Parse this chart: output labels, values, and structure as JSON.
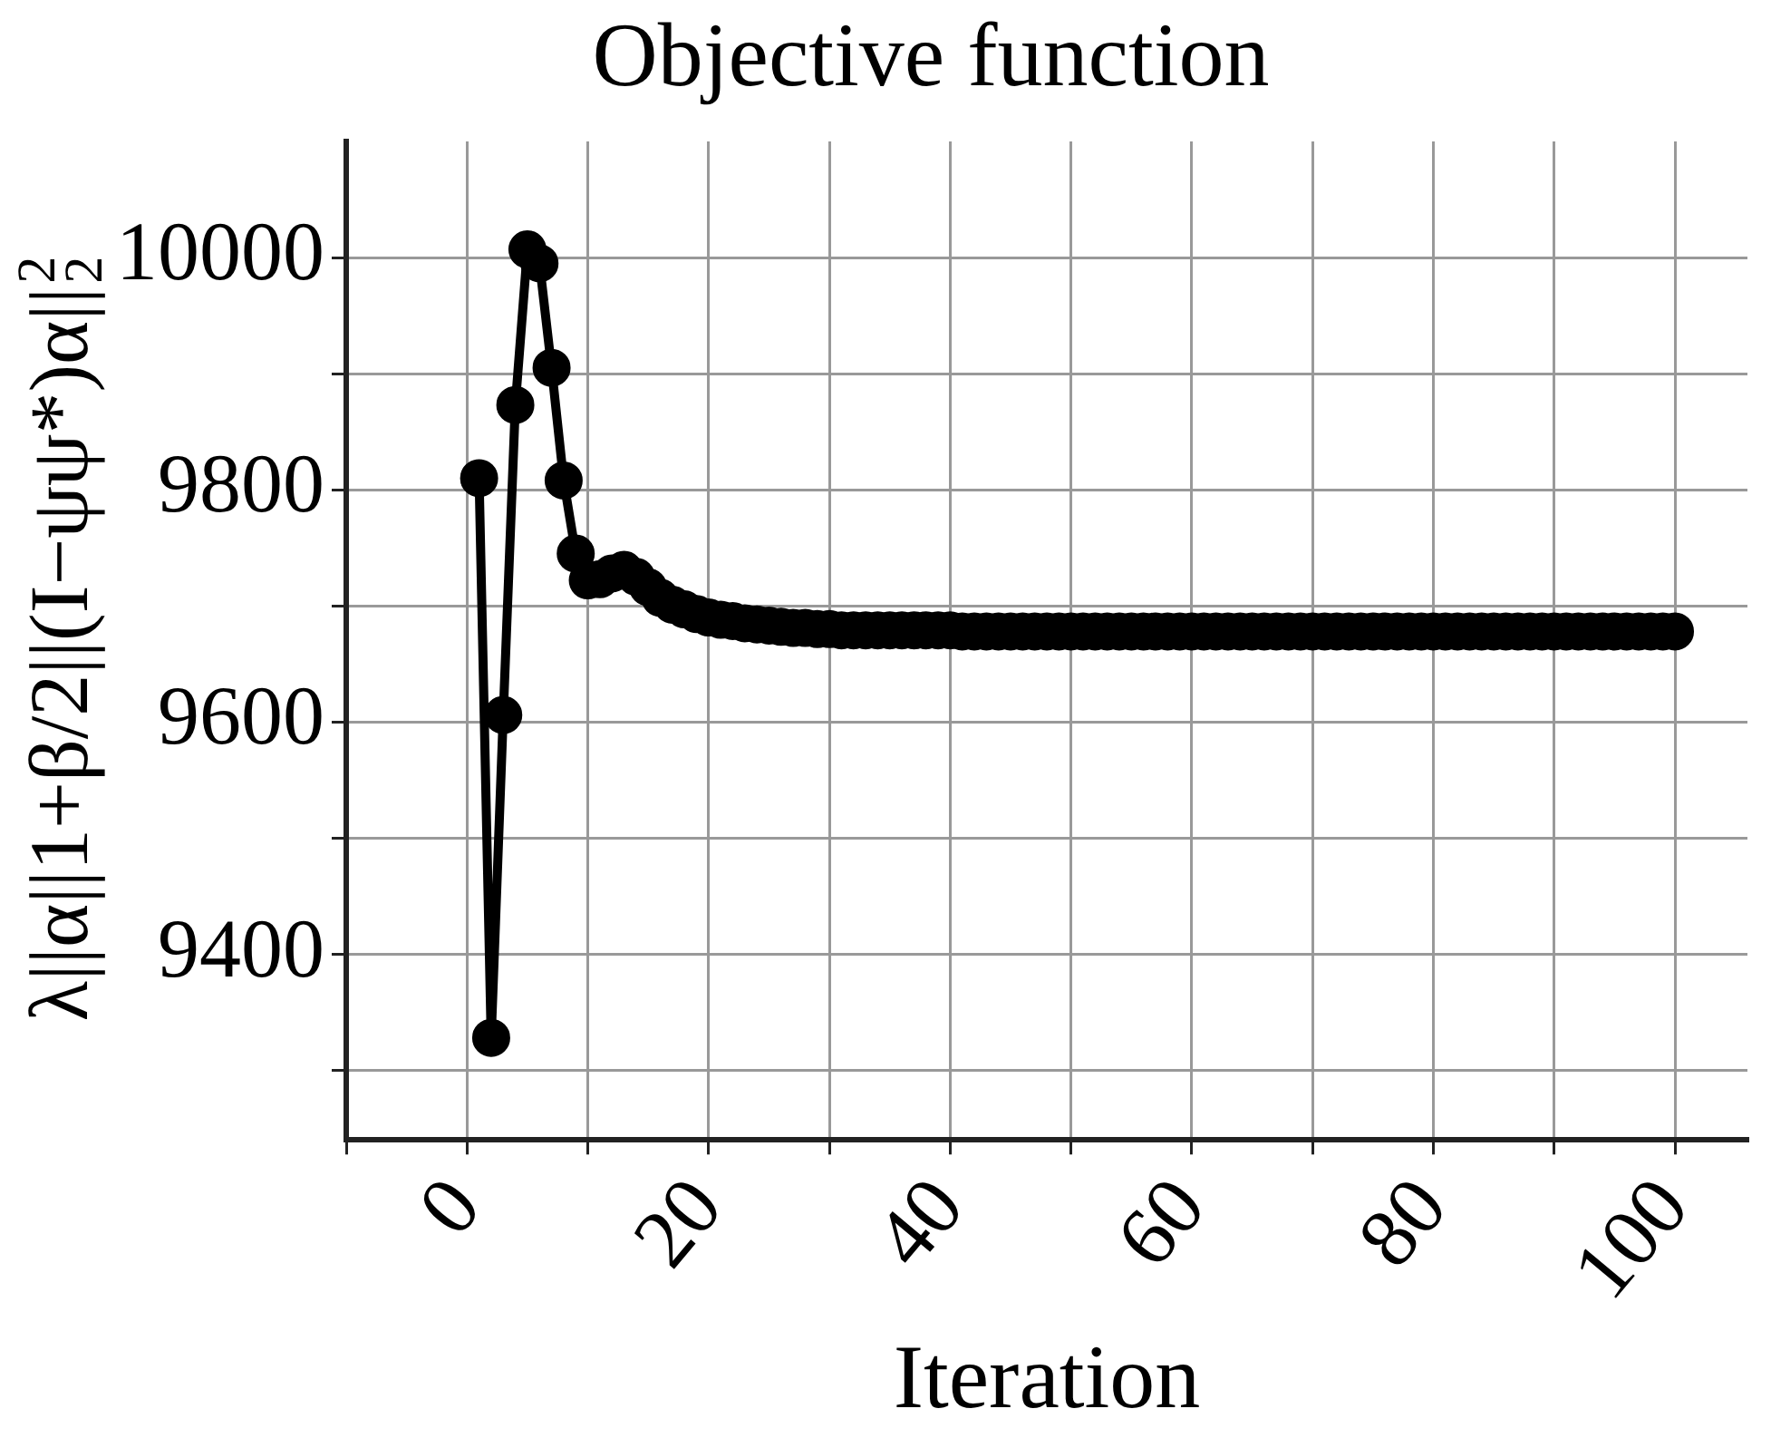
{
  "chart_data": {
    "type": "line",
    "title": "Objective function",
    "xlabel": "Iteration",
    "ylabel": "λ||α||1+β/2||(I−ψψ*)α||$_{2}$$^{2}$",
    "x": [
      1,
      2,
      3,
      4,
      5,
      6,
      7,
      8,
      9,
      10,
      11,
      12,
      13,
      14,
      15,
      16,
      17,
      18,
      19,
      20,
      21,
      22,
      23,
      24,
      25,
      26,
      27,
      28,
      29,
      30,
      31,
      32,
      33,
      34,
      35,
      36,
      37,
      38,
      39,
      40,
      41,
      42,
      43,
      44,
      45,
      46,
      47,
      48,
      49,
      50,
      51,
      52,
      53,
      54,
      55,
      56,
      57,
      58,
      59,
      60,
      61,
      62,
      63,
      64,
      65,
      66,
      67,
      68,
      69,
      70,
      71,
      72,
      73,
      74,
      75,
      76,
      77,
      78,
      79,
      80,
      81,
      82,
      83,
      84,
      85,
      86,
      87,
      88,
      89,
      90,
      91,
      92,
      93,
      94,
      95,
      96,
      97,
      98,
      99,
      100
    ],
    "series": [
      {
        "color": "#000000",
        "values": [
          9810,
          9328,
          9606,
          9873,
          10007,
          9995,
          9905,
          9808,
          9745,
          9722,
          9723,
          9728,
          9731,
          9725,
          9716,
          9707,
          9701,
          9697,
          9693,
          9690,
          9688,
          9687,
          9685,
          9684,
          9683,
          9682,
          9681,
          9681,
          9680,
          9680,
          9679,
          9679,
          9679,
          9679,
          9679,
          9679,
          9679,
          9679,
          9679,
          9679,
          9678,
          9678,
          9678,
          9678,
          9678,
          9678,
          9678,
          9678,
          9678,
          9678,
          9678,
          9678,
          9678,
          9678,
          9678,
          9678,
          9678,
          9678,
          9678,
          9678,
          9678,
          9678,
          9678,
          9678,
          9678,
          9678,
          9678,
          9678,
          9678,
          9678,
          9678,
          9678,
          9678,
          9678,
          9678,
          9678,
          9678,
          9678,
          9678,
          9678,
          9678,
          9678,
          9678,
          9678,
          9678,
          9678,
          9678,
          9678,
          9678,
          9678,
          9678,
          9678,
          9678,
          9678,
          9678,
          9678,
          9678,
          9678,
          9678,
          9678
        ]
      }
    ],
    "xlim": [
      -10,
      106
    ],
    "xticks": [
      {
        "value": -10,
        "label": null
      },
      0,
      {
        "value": 10,
        "label": null
      },
      20,
      {
        "value": 30,
        "label": null
      },
      40,
      {
        "value": 50,
        "label": null
      },
      60,
      {
        "value": 70,
        "label": null
      },
      80,
      {
        "value": 90,
        "label": null
      },
      100
    ],
    "ylim": [
      9240,
      10100
    ],
    "yticks": [
      {
        "value": 9300,
        "label": null
      },
      9400,
      {
        "value": 9500,
        "label": null
      },
      9600,
      {
        "value": 9700,
        "label": null
      },
      9800,
      {
        "value": 9900,
        "label": null
      },
      10000
    ],
    "grid": true,
    "legend": false,
    "marker": "circle",
    "line_style": "solid"
  }
}
